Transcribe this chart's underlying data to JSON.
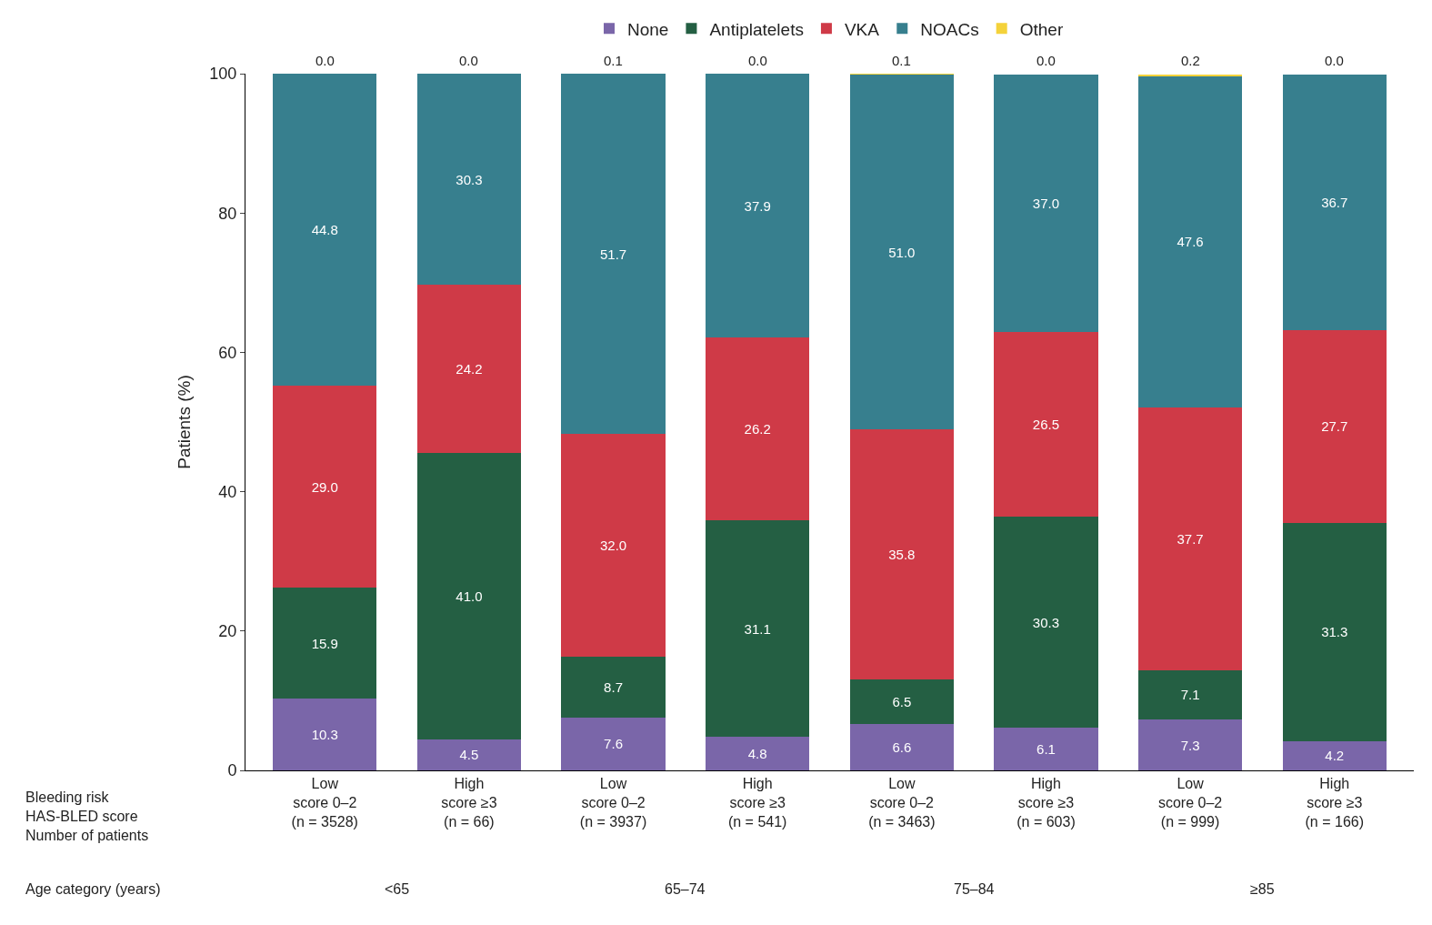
{
  "chart_data": {
    "type": "bar",
    "stacked": true,
    "ylabel": "Patients (%)",
    "ylim": [
      0,
      100
    ],
    "yticks": [
      0,
      20,
      40,
      60,
      80,
      100
    ],
    "legend": "top",
    "categories": [
      "Low\nscore 0–2\n(n = 3528)",
      "High\nscore ≥3\n(n = 66)",
      "Low\nscore 0–2\n(n = 3937)",
      "High\nscore ≥3\n(n = 541)",
      "Low\nscore 0–2\n(n = 3463)",
      "High\nscore ≥3\n(n = 603)",
      "Low\nscore 0–2\n(n = 999)",
      "High\nscore ≥3\n(n = 166)"
    ],
    "series": [
      {
        "name": "None",
        "color": "#7a66a9",
        "values": [
          10.3,
          4.5,
          7.6,
          4.8,
          6.6,
          6.1,
          7.3,
          4.2
        ],
        "value_labels": [
          "10.3",
          "4.5",
          "7.6",
          "4.8",
          "6.6",
          "6.1",
          "7.3",
          "4.2"
        ]
      },
      {
        "name": "Antiplatelets",
        "color": "#245f43",
        "values": [
          15.9,
          41.0,
          8.7,
          31.1,
          6.5,
          30.3,
          7.1,
          31.3
        ],
        "value_labels": [
          "15.9",
          "41.0",
          "8.7",
          "31.1",
          "6.5",
          "30.3",
          "7.1",
          "31.3"
        ]
      },
      {
        "name": "VKA",
        "color": "#cf3a47",
        "values": [
          29.0,
          24.2,
          32.0,
          26.2,
          35.8,
          26.5,
          37.7,
          27.7
        ],
        "value_labels": [
          "29.0",
          "24.2",
          "32.0",
          "26.2",
          "35.8",
          "26.5",
          "37.7",
          "27.7"
        ]
      },
      {
        "name": "NOACs",
        "color": "#377f8e",
        "values": [
          44.8,
          30.3,
          51.7,
          37.9,
          51.0,
          37.0,
          47.6,
          36.7
        ],
        "value_labels": [
          "44.8",
          "30.3",
          "51.7",
          "37.9",
          "51.0",
          "37.0",
          "47.6",
          "36.7"
        ]
      },
      {
        "name": "Other",
        "color": "#f4d23a",
        "values": [
          0.0,
          0.0,
          0.1,
          0.0,
          0.1,
          0.0,
          0.2,
          0.0
        ],
        "value_labels": [
          "0.0",
          "0.0",
          "0.1",
          "0.0",
          "0.1",
          "0.0",
          "0.2",
          "0.0"
        ]
      }
    ],
    "annotations": [
      "Bleeding risk\nHAS-BLED score\nNumber of patients",
      "Age category (years)",
      "<65",
      "65–74",
      "75–84",
      "≥85"
    ]
  }
}
